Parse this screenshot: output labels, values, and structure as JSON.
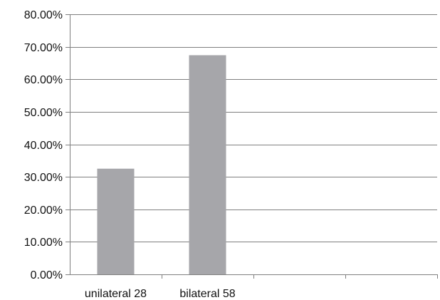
{
  "chart_data": {
    "type": "bar",
    "title": "",
    "xlabel": "",
    "ylabel": "",
    "categories": [
      "unilateral 28",
      "bilateral 58",
      "",
      ""
    ],
    "values": [
      0.325,
      0.674,
      null,
      null
    ],
    "ylim": [
      0,
      0.8
    ],
    "yticks": [
      0,
      0.1,
      0.2,
      0.3,
      0.4,
      0.5,
      0.6,
      0.7,
      0.8
    ],
    "ytick_labels": [
      "0.00%",
      "10.00%",
      "20.00%",
      "30.00%",
      "40.00%",
      "50.00%",
      "60.00%",
      "70.00%",
      "80.00%"
    ],
    "grid": true,
    "legend": "none",
    "bar_color": "#a6a6aa",
    "grid_color": "#7f7f7f",
    "axis_color": "#7f7f7f"
  }
}
